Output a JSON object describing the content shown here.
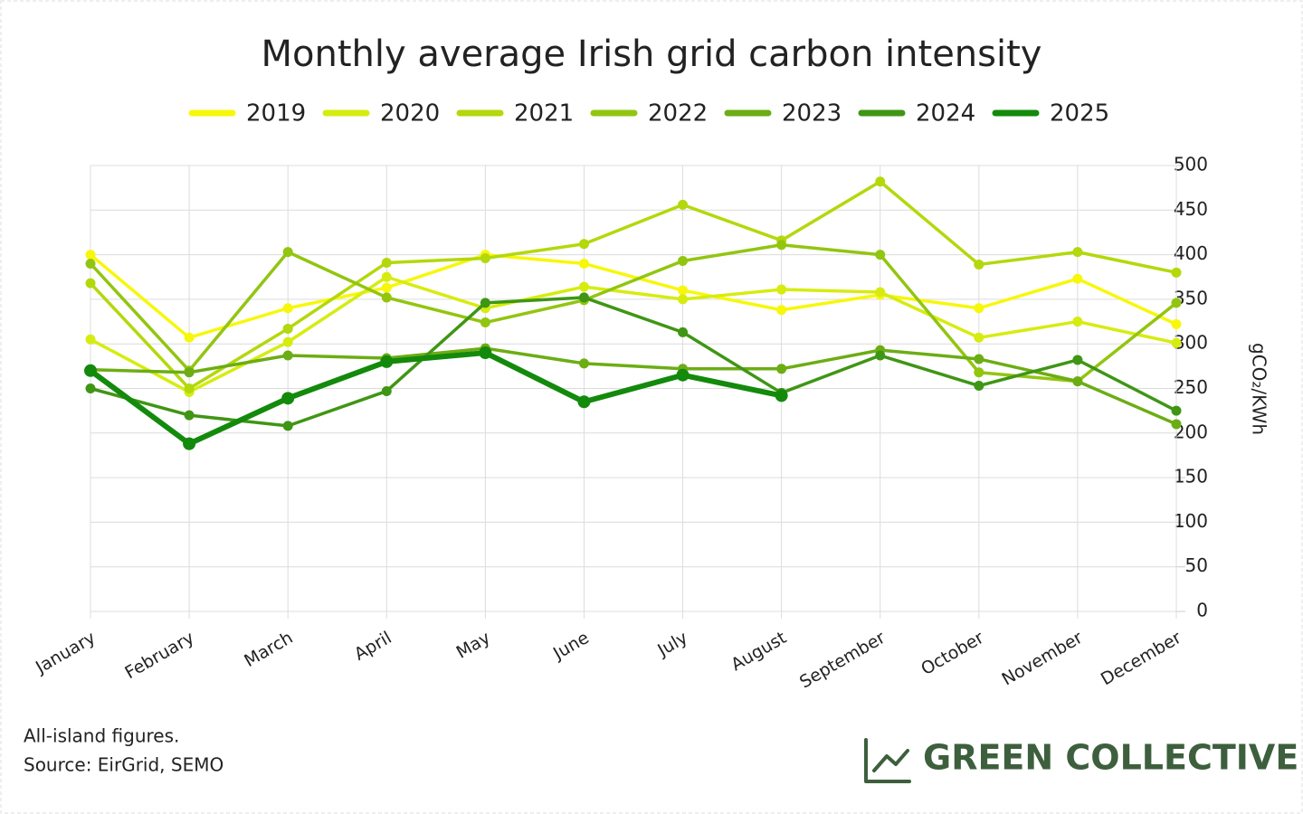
{
  "chart_data": {
    "type": "line",
    "title": "Monthly average Irish grid carbon intensity",
    "y_axis_label": "gCO₂/KWh",
    "categories": [
      "January",
      "February",
      "March",
      "April",
      "May",
      "June",
      "July",
      "August",
      "September",
      "October",
      "November",
      "December"
    ],
    "series": [
      {
        "name": "2019",
        "color": "#f7f70c",
        "values": [
          400,
          307,
          340,
          363,
          400,
          390,
          360,
          338,
          355,
          340,
          373,
          322
        ]
      },
      {
        "name": "2020",
        "color": "#d6ec10",
        "values": [
          305,
          246,
          302,
          375,
          340,
          364,
          350,
          361,
          358,
          307,
          325,
          301
        ]
      },
      {
        "name": "2021",
        "color": "#b3d80c",
        "values": [
          368,
          250,
          317,
          391,
          396,
          412,
          456,
          416,
          482,
          389,
          403,
          380
        ]
      },
      {
        "name": "2022",
        "color": "#92c510",
        "values": [
          390,
          270,
          403,
          352,
          324,
          349,
          393,
          411,
          400,
          268,
          258,
          346
        ]
      },
      {
        "name": "2023",
        "color": "#6cad14",
        "values": [
          271,
          268,
          287,
          284,
          295,
          278,
          272,
          272,
          293,
          283,
          258,
          210
        ]
      },
      {
        "name": "2024",
        "color": "#3f9614",
        "values": [
          250,
          220,
          208,
          247,
          346,
          352,
          313,
          245,
          287,
          253,
          282,
          225
        ]
      },
      {
        "name": "2025",
        "color": "#138a0b",
        "values": [
          270,
          188,
          239,
          280,
          290,
          235,
          265,
          242,
          null,
          null,
          null,
          null
        ]
      }
    ],
    "ylim": [
      0,
      500
    ],
    "yticks": [
      0,
      50,
      100,
      150,
      200,
      250,
      300,
      350,
      400,
      450,
      500
    ],
    "grid": true,
    "legend": "top"
  },
  "footer": {
    "notes": [
      "All-island figures.",
      "Source: EirGrid, SEMO"
    ],
    "brand": "GREEN COLLECTIVE"
  }
}
